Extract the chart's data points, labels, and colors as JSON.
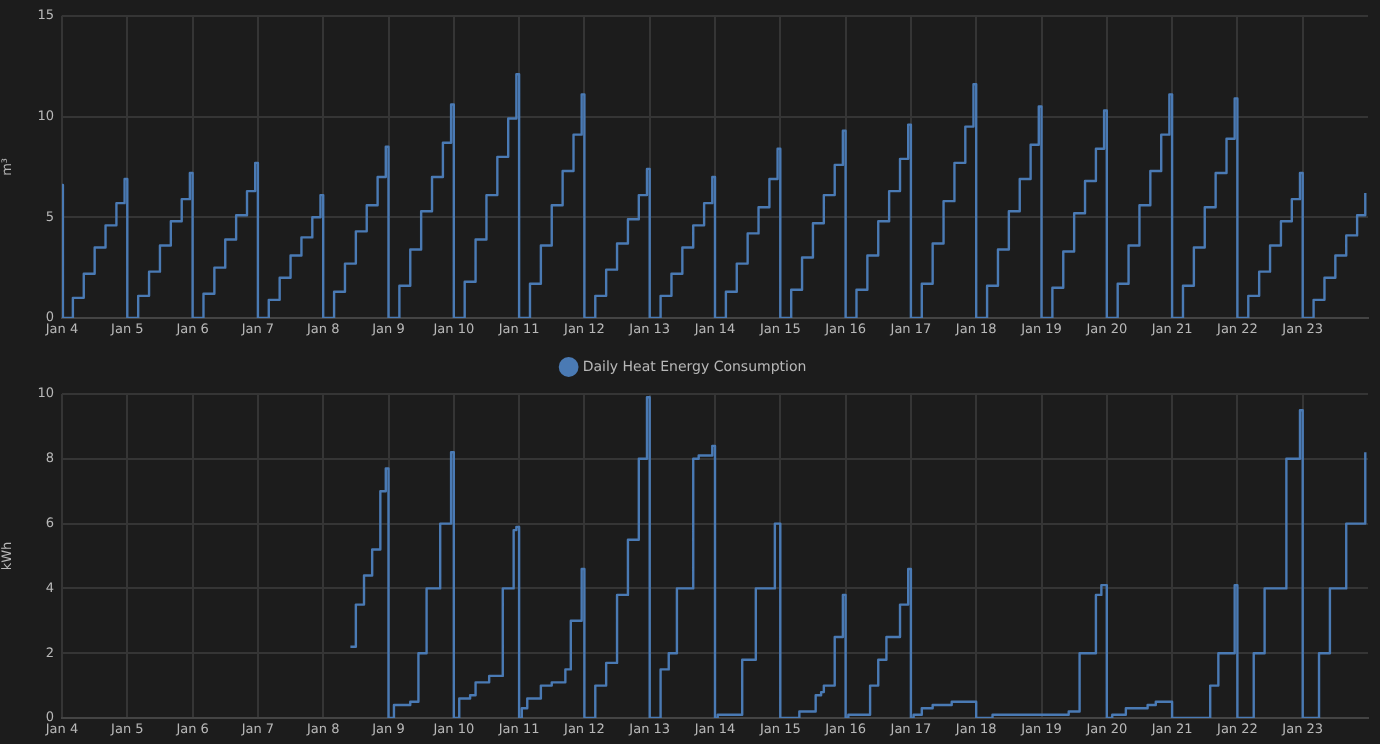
{
  "chart_data": [
    {
      "type": "step",
      "ylabel": "m³",
      "xlim": [
        "--01-04",
        "--01-24"
      ],
      "ylim": [
        0,
        15
      ],
      "yticks": [
        0,
        5,
        10,
        15
      ],
      "grid": true,
      "legend": false,
      "xticks": [
        {
          "value": "--01-04",
          "label": "Jan 4"
        },
        {
          "value": "--01-05",
          "label": "Jan 5"
        },
        {
          "value": "--01-06",
          "label": "Jan 6"
        },
        {
          "value": "--01-07",
          "label": "Jan 7"
        },
        {
          "value": "--01-08",
          "label": "Jan 8"
        },
        {
          "value": "--01-09",
          "label": "Jan 9"
        },
        {
          "value": "--01-10",
          "label": "Jan 10"
        },
        {
          "value": "--01-11",
          "label": "Jan 11"
        },
        {
          "value": "--01-12",
          "label": "Jan 12"
        },
        {
          "value": "--01-13",
          "label": "Jan 13"
        },
        {
          "value": "--01-14",
          "label": "Jan 14"
        },
        {
          "value": "--01-15",
          "label": "Jan 15"
        },
        {
          "value": "--01-16",
          "label": "Jan 16"
        },
        {
          "value": "--01-17",
          "label": "Jan 17"
        },
        {
          "value": "--01-18",
          "label": "Jan 18"
        },
        {
          "value": "--01-19",
          "label": "Jan 19"
        },
        {
          "value": "--01-20",
          "label": "Jan 20"
        },
        {
          "value": "--01-21",
          "label": "Jan 21"
        },
        {
          "value": "--01-22",
          "label": "Jan 22"
        },
        {
          "value": "--01-23",
          "label": "Jan 23"
        }
      ],
      "series": [
        {
          "color": "#4a7ab4",
          "x": [
            "--01-04T00:00",
            "--01-04T00:20",
            "--01-04T04:00",
            "--01-04T08:00",
            "--01-04T12:00",
            "--01-04T16:00",
            "--01-04T20:00",
            "--01-04T23:00",
            "--01-05T00:00",
            "--01-05T04:00",
            "--01-05T08:00",
            "--01-05T12:00",
            "--01-05T16:00",
            "--01-05T20:00",
            "--01-05T23:00",
            "--01-06T00:00",
            "--01-06T04:00",
            "--01-06T08:00",
            "--01-06T12:00",
            "--01-06T16:00",
            "--01-06T20:00",
            "--01-06T23:00",
            "--01-07T00:00",
            "--01-07T04:00",
            "--01-07T08:00",
            "--01-07T12:00",
            "--01-07T16:00",
            "--01-07T20:00",
            "--01-07T23:00",
            "--01-08T00:00",
            "--01-08T04:00",
            "--01-08T08:00",
            "--01-08T12:00",
            "--01-08T16:00",
            "--01-08T20:00",
            "--01-08T23:00",
            "--01-09T00:00",
            "--01-09T04:00",
            "--01-09T08:00",
            "--01-09T12:00",
            "--01-09T16:00",
            "--01-09T20:00",
            "--01-09T23:00",
            "--01-10T00:00",
            "--01-10T04:00",
            "--01-10T08:00",
            "--01-10T12:00",
            "--01-10T16:00",
            "--01-10T20:00",
            "--01-10T23:00",
            "--01-11T00:00",
            "--01-11T04:00",
            "--01-11T08:00",
            "--01-11T12:00",
            "--01-11T16:00",
            "--01-11T20:00",
            "--01-11T23:00",
            "--01-12T00:00",
            "--01-12T04:00",
            "--01-12T08:00",
            "--01-12T12:00",
            "--01-12T16:00",
            "--01-12T20:00",
            "--01-12T23:00",
            "--01-13T00:00",
            "--01-13T04:00",
            "--01-13T08:00",
            "--01-13T12:00",
            "--01-13T16:00",
            "--01-13T20:00",
            "--01-13T23:00",
            "--01-14T00:00",
            "--01-14T04:00",
            "--01-14T08:00",
            "--01-14T12:00",
            "--01-14T16:00",
            "--01-14T20:00",
            "--01-14T23:00",
            "--01-15T00:00",
            "--01-15T04:00",
            "--01-15T08:00",
            "--01-15T12:00",
            "--01-15T16:00",
            "--01-15T20:00",
            "--01-15T23:00",
            "--01-16T00:00",
            "--01-16T04:00",
            "--01-16T08:00",
            "--01-16T12:00",
            "--01-16T16:00",
            "--01-16T20:00",
            "--01-16T23:00",
            "--01-17T00:00",
            "--01-17T04:00",
            "--01-17T08:00",
            "--01-17T12:00",
            "--01-17T16:00",
            "--01-17T20:00",
            "--01-17T23:00",
            "--01-18T00:00",
            "--01-18T04:00",
            "--01-18T08:00",
            "--01-18T12:00",
            "--01-18T16:00",
            "--01-18T20:00",
            "--01-18T23:00",
            "--01-19T00:00",
            "--01-19T04:00",
            "--01-19T08:00",
            "--01-19T12:00",
            "--01-19T16:00",
            "--01-19T20:00",
            "--01-19T23:00",
            "--01-20T00:00",
            "--01-20T04:00",
            "--01-20T08:00",
            "--01-20T12:00",
            "--01-20T16:00",
            "--01-20T20:00",
            "--01-20T23:00",
            "--01-21T00:00",
            "--01-21T04:00",
            "--01-21T08:00",
            "--01-21T12:00",
            "--01-21T16:00",
            "--01-21T20:00",
            "--01-21T23:00",
            "--01-22T00:00",
            "--01-22T04:00",
            "--01-22T08:00",
            "--01-22T12:00",
            "--01-22T16:00",
            "--01-22T20:00",
            "--01-22T23:00",
            "--01-23T00:00",
            "--01-23T04:00",
            "--01-23T08:00",
            "--01-23T12:00",
            "--01-23T16:00",
            "--01-23T20:00",
            "--01-23T23:00"
          ],
          "values": [
            6.6,
            0,
            1.0,
            2.2,
            3.5,
            4.6,
            5.7,
            6.9,
            0,
            1.1,
            2.3,
            3.6,
            4.8,
            5.9,
            7.2,
            0,
            1.2,
            2.5,
            3.9,
            5.1,
            6.3,
            7.7,
            0,
            0.9,
            2.0,
            3.1,
            4.0,
            5.0,
            6.1,
            0,
            1.3,
            2.7,
            4.3,
            5.6,
            7.0,
            8.5,
            0,
            1.6,
            3.4,
            5.3,
            7.0,
            8.7,
            10.6,
            0,
            1.8,
            3.9,
            6.1,
            8.0,
            9.9,
            12.1,
            0,
            1.7,
            3.6,
            5.6,
            7.3,
            9.1,
            11.1,
            0,
            1.1,
            2.4,
            3.7,
            4.9,
            6.1,
            7.4,
            0,
            1.1,
            2.2,
            3.5,
            4.6,
            5.7,
            7.0,
            0,
            1.3,
            2.7,
            4.2,
            5.5,
            6.9,
            8.4,
            0,
            1.4,
            3.0,
            4.7,
            6.1,
            7.6,
            9.3,
            0,
            1.4,
            3.1,
            4.8,
            6.3,
            7.9,
            9.6,
            0,
            1.7,
            3.7,
            5.8,
            7.7,
            9.5,
            11.6,
            0,
            1.6,
            3.4,
            5.3,
            6.9,
            8.6,
            10.5,
            0,
            1.5,
            3.3,
            5.2,
            6.8,
            8.4,
            10.3,
            0,
            1.7,
            3.6,
            5.6,
            7.3,
            9.1,
            11.1,
            0,
            1.6,
            3.5,
            5.5,
            7.2,
            8.9,
            10.9,
            0,
            1.1,
            2.3,
            3.6,
            4.8,
            5.9,
            7.2,
            0,
            0.9,
            2.0,
            3.1,
            4.1,
            5.1,
            6.2
          ]
        }
      ]
    },
    {
      "type": "step",
      "ylabel": "kWh",
      "xlim": [
        "--01-04",
        "--01-24"
      ],
      "ylim": [
        0,
        10
      ],
      "yticks": [
        0,
        2,
        4,
        6,
        8,
        10
      ],
      "grid": true,
      "legend": "top",
      "xticks": [
        {
          "value": "--01-04",
          "label": "Jan 4"
        },
        {
          "value": "--01-05",
          "label": "Jan 5"
        },
        {
          "value": "--01-06",
          "label": "Jan 6"
        },
        {
          "value": "--01-07",
          "label": "Jan 7"
        },
        {
          "value": "--01-08",
          "label": "Jan 8"
        },
        {
          "value": "--01-09",
          "label": "Jan 9"
        },
        {
          "value": "--01-10",
          "label": "Jan 10"
        },
        {
          "value": "--01-11",
          "label": "Jan 11"
        },
        {
          "value": "--01-12",
          "label": "Jan 12"
        },
        {
          "value": "--01-13",
          "label": "Jan 13"
        },
        {
          "value": "--01-14",
          "label": "Jan 14"
        },
        {
          "value": "--01-15",
          "label": "Jan 15"
        },
        {
          "value": "--01-16",
          "label": "Jan 16"
        },
        {
          "value": "--01-17",
          "label": "Jan 17"
        },
        {
          "value": "--01-18",
          "label": "Jan 18"
        },
        {
          "value": "--01-19",
          "label": "Jan 19"
        },
        {
          "value": "--01-20",
          "label": "Jan 20"
        },
        {
          "value": "--01-21",
          "label": "Jan 21"
        },
        {
          "value": "--01-22",
          "label": "Jan 22"
        },
        {
          "value": "--01-23",
          "label": "Jan 23"
        }
      ],
      "series": [
        {
          "name": "Daily Heat Energy Consumption",
          "color": "#4a7ab4",
          "x": [
            "--01-08T10:00",
            "--01-08T12:00",
            "--01-08T15:00",
            "--01-08T18:00",
            "--01-08T21:00",
            "--01-08T23:00",
            "--01-09T00:00",
            "--01-09T02:00",
            "--01-09T08:00",
            "--01-09T11:00",
            "--01-09T14:00",
            "--01-09T19:00",
            "--01-09T23:00",
            "--01-10T00:00",
            "--01-10T02:00",
            "--01-10T06:00",
            "--01-10T08:00",
            "--01-10T13:00",
            "--01-10T18:00",
            "--01-10T22:00",
            "--01-10T23:00",
            "--01-11T00:00",
            "--01-11T01:00",
            "--01-11T03:00",
            "--01-11T08:00",
            "--01-11T12:00",
            "--01-11T17:00",
            "--01-11T19:00",
            "--01-11T23:00",
            "--01-12T00:00",
            "--01-12T04:00",
            "--01-12T08:00",
            "--01-12T12:00",
            "--01-12T16:00",
            "--01-12T20:00",
            "--01-12T23:00",
            "--01-13T00:00",
            "--01-13T04:00",
            "--01-13T07:00",
            "--01-13T10:00",
            "--01-13T16:00",
            "--01-13T18:00",
            "--01-13T23:00",
            "--01-14T00:00",
            "--01-14T01:00",
            "--01-14T10:00",
            "--01-14T15:00",
            "--01-14T22:00",
            "--01-15T00:00",
            "--01-15T07:00",
            "--01-15T13:00",
            "--01-15T15:00",
            "--01-15T16:00",
            "--01-15T20:00",
            "--01-15T23:00",
            "--01-16T00:00",
            "--01-16T01:00",
            "--01-16T09:00",
            "--01-16T12:00",
            "--01-16T15:00",
            "--01-16T20:00",
            "--01-16T23:00",
            "--01-17T00:00",
            "--01-17T01:00",
            "--01-17T04:00",
            "--01-17T08:00",
            "--01-17T15:00",
            "--01-18T00:00",
            "--01-18T06:00",
            "--01-19T10:00",
            "--01-19T14:00",
            "--01-19T20:00",
            "--01-19T22:00",
            "--01-20T00:00",
            "--01-20T02:00",
            "--01-20T07:00",
            "--01-20T15:00",
            "--01-20T18:00",
            "--01-21T00:00",
            "--01-21T14:00",
            "--01-21T17:00",
            "--01-21T23:00",
            "--01-22T00:00",
            "--01-22T06:00",
            "--01-22T10:00",
            "--01-22T18:00",
            "--01-22T23:00",
            "--01-23T00:00",
            "--01-23T06:00",
            "--01-23T10:00",
            "--01-23T16:00",
            "--01-23T23:00"
          ],
          "values": [
            2.2,
            3.5,
            4.4,
            5.2,
            7.0,
            7.7,
            0,
            0.4,
            0.5,
            2.0,
            4.0,
            6.0,
            8.2,
            0,
            0.6,
            0.7,
            1.1,
            1.3,
            4.0,
            5.8,
            5.9,
            0,
            0.3,
            0.6,
            1.0,
            1.1,
            1.5,
            3.0,
            4.6,
            0,
            1.0,
            1.7,
            3.8,
            5.5,
            8.0,
            9.9,
            0,
            1.5,
            2.0,
            4.0,
            8.0,
            8.1,
            8.4,
            0,
            0.1,
            1.8,
            4.0,
            6.0,
            0,
            0.2,
            0.7,
            0.8,
            1.0,
            2.5,
            3.8,
            0,
            0.1,
            1.0,
            1.8,
            2.5,
            3.5,
            4.6,
            0,
            0.1,
            0.3,
            0.4,
            0.5,
            0,
            0.1,
            0.2,
            2.0,
            3.8,
            4.1,
            0,
            0.1,
            0.3,
            0.4,
            0.5,
            0,
            1.0,
            2.0,
            4.1,
            0,
            2.0,
            4.0,
            8.0,
            9.5,
            0,
            2.0,
            4.0,
            6.0,
            8.2
          ]
        }
      ]
    }
  ]
}
